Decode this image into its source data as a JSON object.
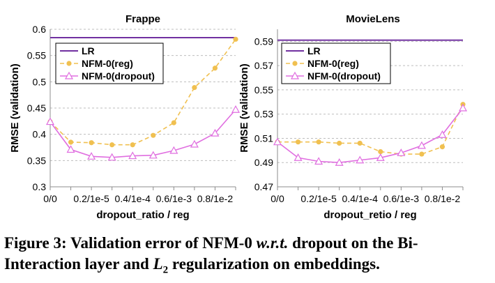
{
  "chart_data": [
    {
      "type": "line",
      "title": "Frappe",
      "xlabel": "dropout_ratio / reg",
      "ylabel": "RMSE (validation)",
      "ylim": [
        0.3,
        0.6
      ],
      "yticks": [
        "0.3",
        "0.35",
        "0.4",
        "0.45",
        "0.5",
        "0.55",
        "0.6"
      ],
      "categories": [
        "0/0",
        "0.1/1e-6",
        "0.2/1e-5",
        "0.3/1e-4.5",
        "0.4/1e-4",
        "0.5/1e-3.5",
        "0.6/1e-3",
        "0.7/1e-2.5",
        "0.8/1e-2",
        "0.9/1e-1.5"
      ],
      "xtick_labels": [
        "0/0",
        "",
        "0.2/1e-5",
        "",
        "0.4/1e-4",
        "",
        "0.6/1e-3",
        "",
        "0.8/1e-2",
        ""
      ],
      "grid": true,
      "legend_position": "top-left",
      "series": [
        {
          "name": "LR",
          "style": "solid",
          "marker": "none",
          "color": "#7030a0",
          "values": [
            0.584,
            0.584,
            0.584,
            0.584,
            0.584,
            0.584,
            0.584,
            0.584,
            0.584,
            0.584
          ]
        },
        {
          "name": "NFM-0(reg)",
          "style": "dashed",
          "marker": "circle",
          "color": "#f0c050",
          "values": [
            0.424,
            0.385,
            0.384,
            0.38,
            0.38,
            0.398,
            0.422,
            0.489,
            0.526,
            0.581
          ]
        },
        {
          "name": "NFM-0(dropout)",
          "style": "solid",
          "marker": "triangle",
          "color": "#e06ee0",
          "values": [
            0.424,
            0.371,
            0.358,
            0.356,
            0.359,
            0.36,
            0.369,
            0.381,
            0.402,
            0.447
          ]
        }
      ]
    },
    {
      "type": "line",
      "title": "MovieLens",
      "xlabel": "dropout_retio / reg",
      "ylabel": "RMSE (validation)",
      "ylim": [
        0.47,
        0.6
      ],
      "yticks": [
        "0.47",
        "0.49",
        "0.51",
        "0.53",
        "0.55",
        "0.57",
        "0.59"
      ],
      "categories": [
        "0/0",
        "0.1/1e-6",
        "0.2/1e-5",
        "0.3/1e-4.5",
        "0.4/1e-4",
        "0.5/1e-3.5",
        "0.6/1e-3",
        "0.7/1e-2.5",
        "0.8/1e-2",
        "0.9/1e-1.5"
      ],
      "xtick_labels": [
        "0/0",
        "",
        "0.2/1e-5",
        "",
        "0.4/1e-4",
        "",
        "0.6/1e-3",
        "",
        "0.8/1e-2",
        ""
      ],
      "grid": true,
      "legend_position": "top-left",
      "series": [
        {
          "name": "LR",
          "style": "solid",
          "marker": "none",
          "color": "#7030a0",
          "values": [
            0.591,
            0.591,
            0.591,
            0.591,
            0.591,
            0.591,
            0.591,
            0.591,
            0.591,
            0.591
          ]
        },
        {
          "name": "NFM-0(reg)",
          "style": "dashed",
          "marker": "circle",
          "color": "#f0c050",
          "values": [
            0.507,
            0.507,
            0.507,
            0.506,
            0.506,
            0.499,
            0.497,
            0.497,
            0.503,
            0.538
          ]
        },
        {
          "name": "NFM-0(dropout)",
          "style": "solid",
          "marker": "triangle",
          "color": "#e06ee0",
          "values": [
            0.507,
            0.494,
            0.491,
            0.49,
            0.492,
            0.494,
            0.498,
            0.504,
            0.513,
            0.535
          ]
        }
      ]
    }
  ],
  "caption": {
    "prefix": "Figure 3: Validation error of NFM-0 ",
    "wrt": "w.r.t.",
    "middle": " dropout on the Bi-Interaction layer and ",
    "l": "L",
    "sub": "2",
    "suffix": " regularization on embeddings."
  }
}
